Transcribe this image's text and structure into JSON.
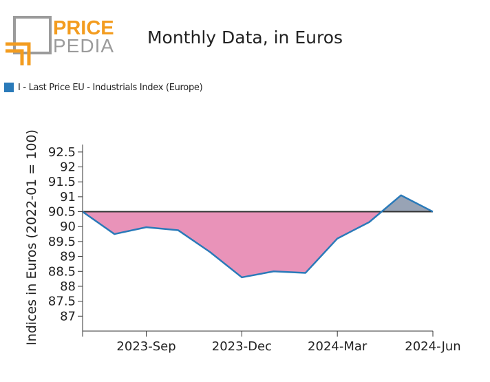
{
  "header": {
    "logo_top": "PRICE",
    "logo_bottom": "PEDIA",
    "title": "Monthly Data, in Euros"
  },
  "colors": {
    "brand_orange": "#f39c1f",
    "logo_gray": "#9b9b9b",
    "series_line": "#2a7ab9",
    "below_fill": "#e993b9",
    "above_fill": "#98a3b5",
    "baseline": "#333333"
  },
  "chart_data": {
    "type": "line",
    "title": "Monthly Data, in Euros",
    "ylabel": "Indices in Euros (2022-01 = 100)",
    "xlabel": "",
    "ylim": [
      86.5,
      92.75
    ],
    "yticks": [
      87,
      87.5,
      88,
      88.5,
      89,
      89.5,
      90,
      90.5,
      91,
      91.5,
      92,
      92.5
    ],
    "ytick_labels": [
      "87",
      "87.5",
      "88",
      "88.5",
      "89",
      "89.5",
      "90",
      "90.5",
      "91",
      "91.5",
      "92",
      "92.5"
    ],
    "xtick_labels": [
      "2023-Sep",
      "2023-Dec",
      "2024-Mar",
      "2024-Jun"
    ],
    "xtick_indices": [
      2,
      5,
      8,
      11
    ],
    "baseline": 90.5,
    "legend_position": "top-left",
    "series": [
      {
        "name": "I - Last Price EU - Industrials Index (Europe)",
        "x": [
          "2023-Jul",
          "2023-Aug",
          "2023-Sep",
          "2023-Oct",
          "2023-Nov",
          "2023-Dec",
          "2024-Jan",
          "2024-Feb",
          "2024-Mar",
          "2024-Apr",
          "2024-May",
          "2024-Jun"
        ],
        "values": [
          90.5,
          89.75,
          89.98,
          89.88,
          89.15,
          88.3,
          88.5,
          88.45,
          89.6,
          90.15,
          91.05,
          90.5
        ]
      }
    ]
  }
}
